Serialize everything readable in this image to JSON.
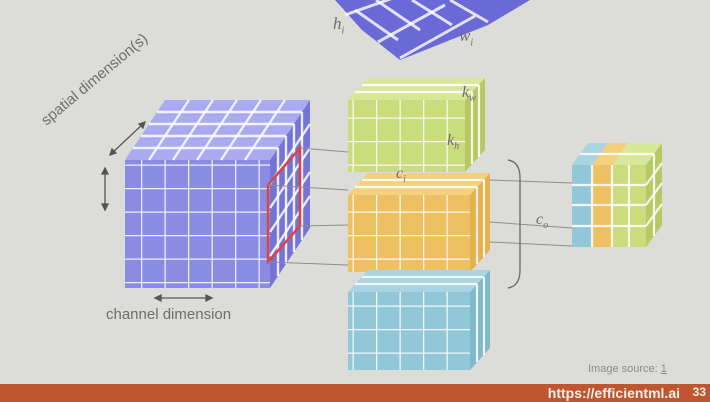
{
  "labels": {
    "spatial_dimension": "spatial dimension(s)",
    "channel_dimension": "channel dimension",
    "input_height": "h",
    "input_height_sub": "i",
    "input_width": "w",
    "input_width_sub": "i",
    "kernel_width": "k",
    "kernel_width_sub": "w",
    "kernel_height": "k",
    "kernel_height_sub": "h",
    "input_channels": "c",
    "input_channels_sub": "i",
    "output_channels": "c",
    "output_channels_sub": "o"
  },
  "image_source": {
    "prefix": "Image source:",
    "link": "1"
  },
  "footer": {
    "url": "https://efficientml.ai",
    "page": "33"
  },
  "colors": {
    "background": "#dcdcd8",
    "input_front": "#8a8be3",
    "input_top": "#a9aaf0",
    "input_side": "#7574d6",
    "kernel_green_front": "#cbdc7c",
    "kernel_green_top": "#d9e79a",
    "kernel_green_side": "#b6c964",
    "kernel_orange_front": "#eec064",
    "kernel_orange_top": "#f2d07e",
    "kernel_orange_side": "#e6b14d",
    "kernel_blue_front": "#92c7d8",
    "kernel_blue_top": "#aad4e2",
    "kernel_blue_side": "#80b9cc",
    "highlight": "#d8473f",
    "footer": "#c0562f"
  }
}
